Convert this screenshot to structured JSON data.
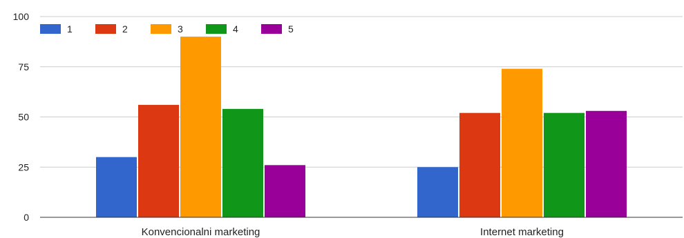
{
  "chart_data": {
    "type": "bar",
    "categories": [
      "Konvencionalni marketing",
      "Internet marketing"
    ],
    "series": [
      {
        "name": "1",
        "color": "#3366cc",
        "values": [
          30,
          25
        ]
      },
      {
        "name": "2",
        "color": "#dc3912",
        "values": [
          56,
          52
        ]
      },
      {
        "name": "3",
        "color": "#ff9900",
        "values": [
          90,
          74
        ]
      },
      {
        "name": "4",
        "color": "#109618",
        "values": [
          54,
          52
        ]
      },
      {
        "name": "5",
        "color": "#990099",
        "values": [
          26,
          53
        ]
      }
    ],
    "ylim": [
      0,
      100
    ],
    "yticks": [
      "0",
      "25",
      "50",
      "75",
      "100"
    ],
    "grid": true,
    "legend": "top-left"
  }
}
